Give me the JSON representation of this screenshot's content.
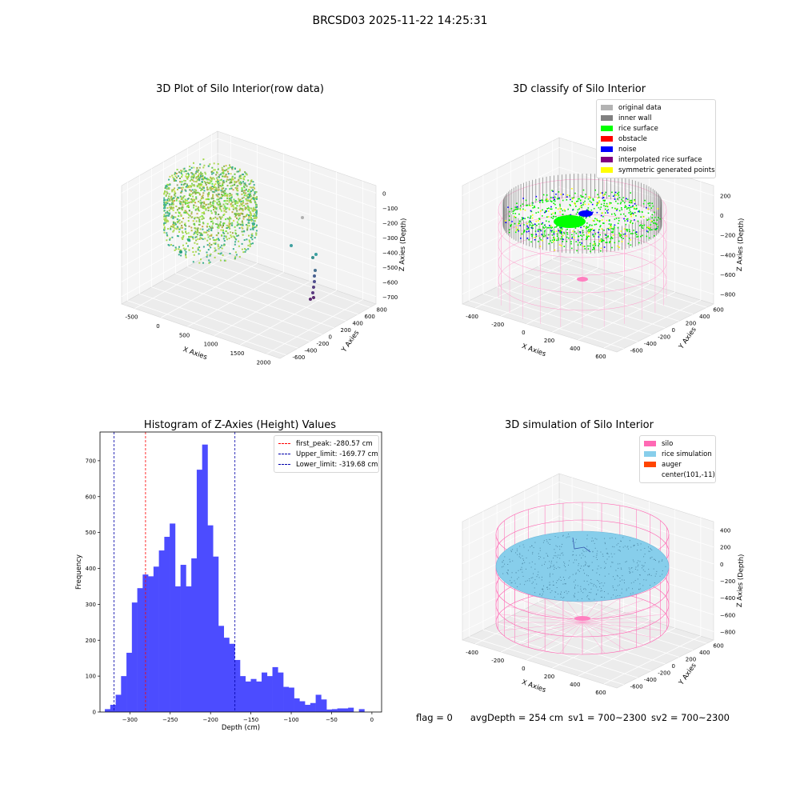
{
  "suptitle": "BRCSD03 2025-11-22 14:25:31",
  "footer": {
    "flag": "flag = 0",
    "avg_depth": "avgDepth = 254 cm",
    "sv1": "sv1 = 700~2300",
    "sv2": "sv2 = 700~2300"
  },
  "plot1": {
    "title": "3D Plot of Silo Interior(row data)",
    "xlabel": "X Axies",
    "ylabel": "Y Axies",
    "zlabel": "Z Axies (Depth)",
    "xticks": [
      "-500",
      "0",
      "500",
      "1000",
      "1500",
      "2000"
    ],
    "yticks": [
      "-600",
      "-400",
      "-200",
      "0",
      "200",
      "400",
      "600",
      "800"
    ],
    "zticks": [
      "0",
      "−100",
      "−200",
      "−300",
      "−400",
      "−500",
      "−600",
      "−700"
    ]
  },
  "plot2": {
    "title": "3D classify of Silo Interior",
    "xlabel": "X Axies",
    "ylabel": "Y Axies",
    "zlabel": "Z Axies (Depth)",
    "xticks": [
      "-400",
      "-200",
      "0",
      "200",
      "400",
      "600"
    ],
    "yticks": [
      "-600",
      "-400",
      "-200",
      "0",
      "200",
      "400",
      "600"
    ],
    "zticks": [
      "200",
      "0",
      "−200",
      "−400",
      "−600",
      "−800"
    ],
    "legend": [
      {
        "label": "original data",
        "color": "#b3b3b3"
      },
      {
        "label": "inner wall",
        "color": "#808080"
      },
      {
        "label": "rice surface",
        "color": "#00ff00"
      },
      {
        "label": "obstacle",
        "color": "#ff0000"
      },
      {
        "label": "noise",
        "color": "#0000ff"
      },
      {
        "label": "interpolated rice surface",
        "color": "#800080"
      },
      {
        "label": "symmetric generated points",
        "color": "#ffff00"
      }
    ]
  },
  "plot4": {
    "title": "3D simulation of Silo Interior",
    "xlabel": "X Axies",
    "ylabel": "Y Axies",
    "zlabel": "Z Axies (Depth)",
    "xticks": [
      "-400",
      "-200",
      "0",
      "200",
      "400",
      "600"
    ],
    "yticks": [
      "-600",
      "-400",
      "-200",
      "0",
      "200",
      "400",
      "600"
    ],
    "zticks": [
      "400",
      "200",
      "0",
      "−200",
      "−400",
      "−600",
      "−800"
    ],
    "legend": [
      {
        "label": "silo",
        "color": "#ff69b4"
      },
      {
        "label": "rice simulation",
        "color": "#87ceeb"
      },
      {
        "label": "auger",
        "color": "#ff4500"
      },
      {
        "label": "center(101,-11)",
        "color": ""
      }
    ]
  },
  "chart_data": {
    "type": "bar",
    "title": "Histogram of Z-Axies (Height) Values",
    "xlabel": "Depth (cm)",
    "ylabel": "Frequency",
    "xlim": [
      -337,
      12
    ],
    "ylim": [
      0,
      780
    ],
    "xticks": [
      -300,
      -250,
      -200,
      -150,
      -100,
      -50,
      0
    ],
    "yticks": [
      0,
      100,
      200,
      300,
      400,
      500,
      600,
      700
    ],
    "bin_start": -331,
    "bin_width": 6.7,
    "values": [
      8,
      20,
      48,
      100,
      165,
      305,
      345,
      383,
      378,
      405,
      450,
      488,
      525,
      350,
      410,
      350,
      428,
      675,
      745,
      520,
      433,
      240,
      207,
      190,
      145,
      100,
      85,
      92,
      85,
      110,
      100,
      125,
      110,
      70,
      68,
      38,
      30,
      20,
      25,
      48,
      35,
      7,
      8,
      10,
      10,
      12,
      0,
      8
    ],
    "color": "#4c4cff",
    "vlines": [
      {
        "label": "first_peak: -280.57 cm",
        "x": -280.57,
        "color": "#ff0000"
      },
      {
        "label": "Upper_limit: -169.77 cm",
        "x": -169.77,
        "color": "#0000aa"
      },
      {
        "label": "Lower_limit: -319.68 cm",
        "x": -319.68,
        "color": "#0000aa"
      }
    ],
    "legend_position": "top-right",
    "grid": false
  }
}
